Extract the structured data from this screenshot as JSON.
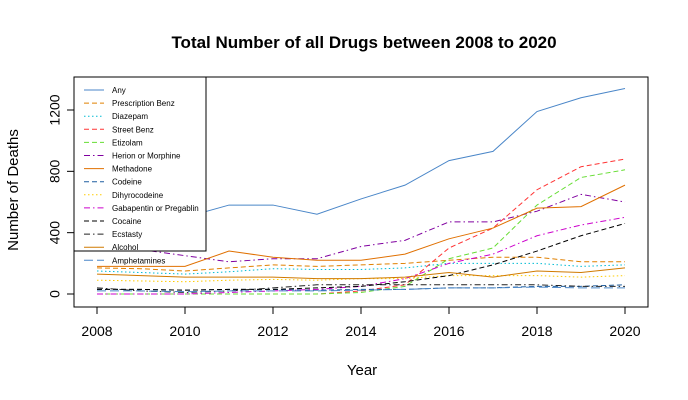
{
  "chart_data": {
    "type": "line",
    "title": "Total Number of all Drugs between 2008 to 2020",
    "xlabel": "Year",
    "ylabel": "Number of Deaths",
    "xlim": [
      2008,
      2020
    ],
    "ylim": [
      0,
      1400
    ],
    "xticks": [
      2008,
      2010,
      2012,
      2014,
      2016,
      2018,
      2020
    ],
    "yticks": [
      0,
      400,
      800,
      1200
    ],
    "grid": false,
    "legend_position": "top-left",
    "x": [
      2008,
      2009,
      2010,
      2011,
      2012,
      2013,
      2014,
      2015,
      2016,
      2017,
      2018,
      2019,
      2020
    ],
    "series": [
      {
        "name": "Any",
        "color": "#4a86c8",
        "dash": "solid",
        "values": [
          650,
          600,
          500,
          580,
          580,
          520,
          620,
          710,
          870,
          930,
          1190,
          1280,
          1340
        ]
      },
      {
        "name": "Prescription Benz",
        "color": "#e08000",
        "dash": "dashed",
        "values": [
          170,
          165,
          150,
          170,
          190,
          180,
          190,
          200,
          220,
          240,
          240,
          210,
          210
        ]
      },
      {
        "name": "Diazepam",
        "color": "#00bcd4",
        "dash": "dotted",
        "values": [
          150,
          140,
          130,
          145,
          165,
          160,
          160,
          170,
          200,
          200,
          200,
          180,
          190
        ]
      },
      {
        "name": "Street Benz",
        "color": "#ff3333",
        "dash": "dashed",
        "values": [
          0,
          0,
          0,
          0,
          0,
          0,
          20,
          60,
          300,
          430,
          680,
          830,
          880
        ]
      },
      {
        "name": "Etizolam",
        "color": "#66dd33",
        "dash": "dashed",
        "values": [
          0,
          0,
          0,
          0,
          0,
          0,
          10,
          50,
          230,
          300,
          580,
          760,
          810
        ]
      },
      {
        "name": "Herion or Morphine",
        "color": "#8000a0",
        "dash": "dashdot",
        "values": [
          320,
          290,
          250,
          210,
          230,
          230,
          310,
          350,
          470,
          470,
          540,
          650,
          600
        ]
      },
      {
        "name": "Methadone",
        "color": "#e07000",
        "dash": "solid",
        "values": [
          180,
          180,
          180,
          280,
          240,
          220,
          220,
          260,
          360,
          430,
          560,
          570,
          710
        ]
      },
      {
        "name": "Codeine",
        "color": "#1f5fa0",
        "dash": "dashed",
        "values": [
          30,
          30,
          25,
          30,
          30,
          25,
          30,
          30,
          40,
          40,
          50,
          50,
          60
        ]
      },
      {
        "name": "Dihyrocodeine",
        "color": "#ffcc00",
        "dash": "dotted",
        "values": [
          90,
          85,
          80,
          90,
          95,
          90,
          100,
          100,
          120,
          120,
          120,
          110,
          120
        ]
      },
      {
        "name": "Gabapentin or Pregablin",
        "color": "#cc00cc",
        "dash": "dashdot",
        "values": [
          0,
          0,
          0,
          10,
          20,
          30,
          50,
          100,
          200,
          260,
          380,
          450,
          500
        ]
      },
      {
        "name": "Cocaine",
        "color": "#000000",
        "dash": "dashed",
        "values": [
          30,
          30,
          25,
          30,
          30,
          40,
          50,
          80,
          120,
          190,
          280,
          380,
          460
        ]
      },
      {
        "name": "Ecstasty",
        "color": "#222222",
        "dash": "dashdot",
        "values": [
          40,
          20,
          10,
          20,
          40,
          60,
          60,
          60,
          60,
          60,
          60,
          50,
          50
        ]
      },
      {
        "name": "Alcohol",
        "color": "#d07a00",
        "dash": "solid",
        "values": [
          130,
          120,
          110,
          110,
          110,
          100,
          100,
          110,
          140,
          110,
          150,
          140,
          170
        ]
      },
      {
        "name": "Amphetamines",
        "color": "#4a86c8",
        "dash": "longdash",
        "values": [
          20,
          20,
          15,
          20,
          20,
          20,
          25,
          30,
          40,
          40,
          45,
          40,
          40
        ]
      }
    ]
  }
}
